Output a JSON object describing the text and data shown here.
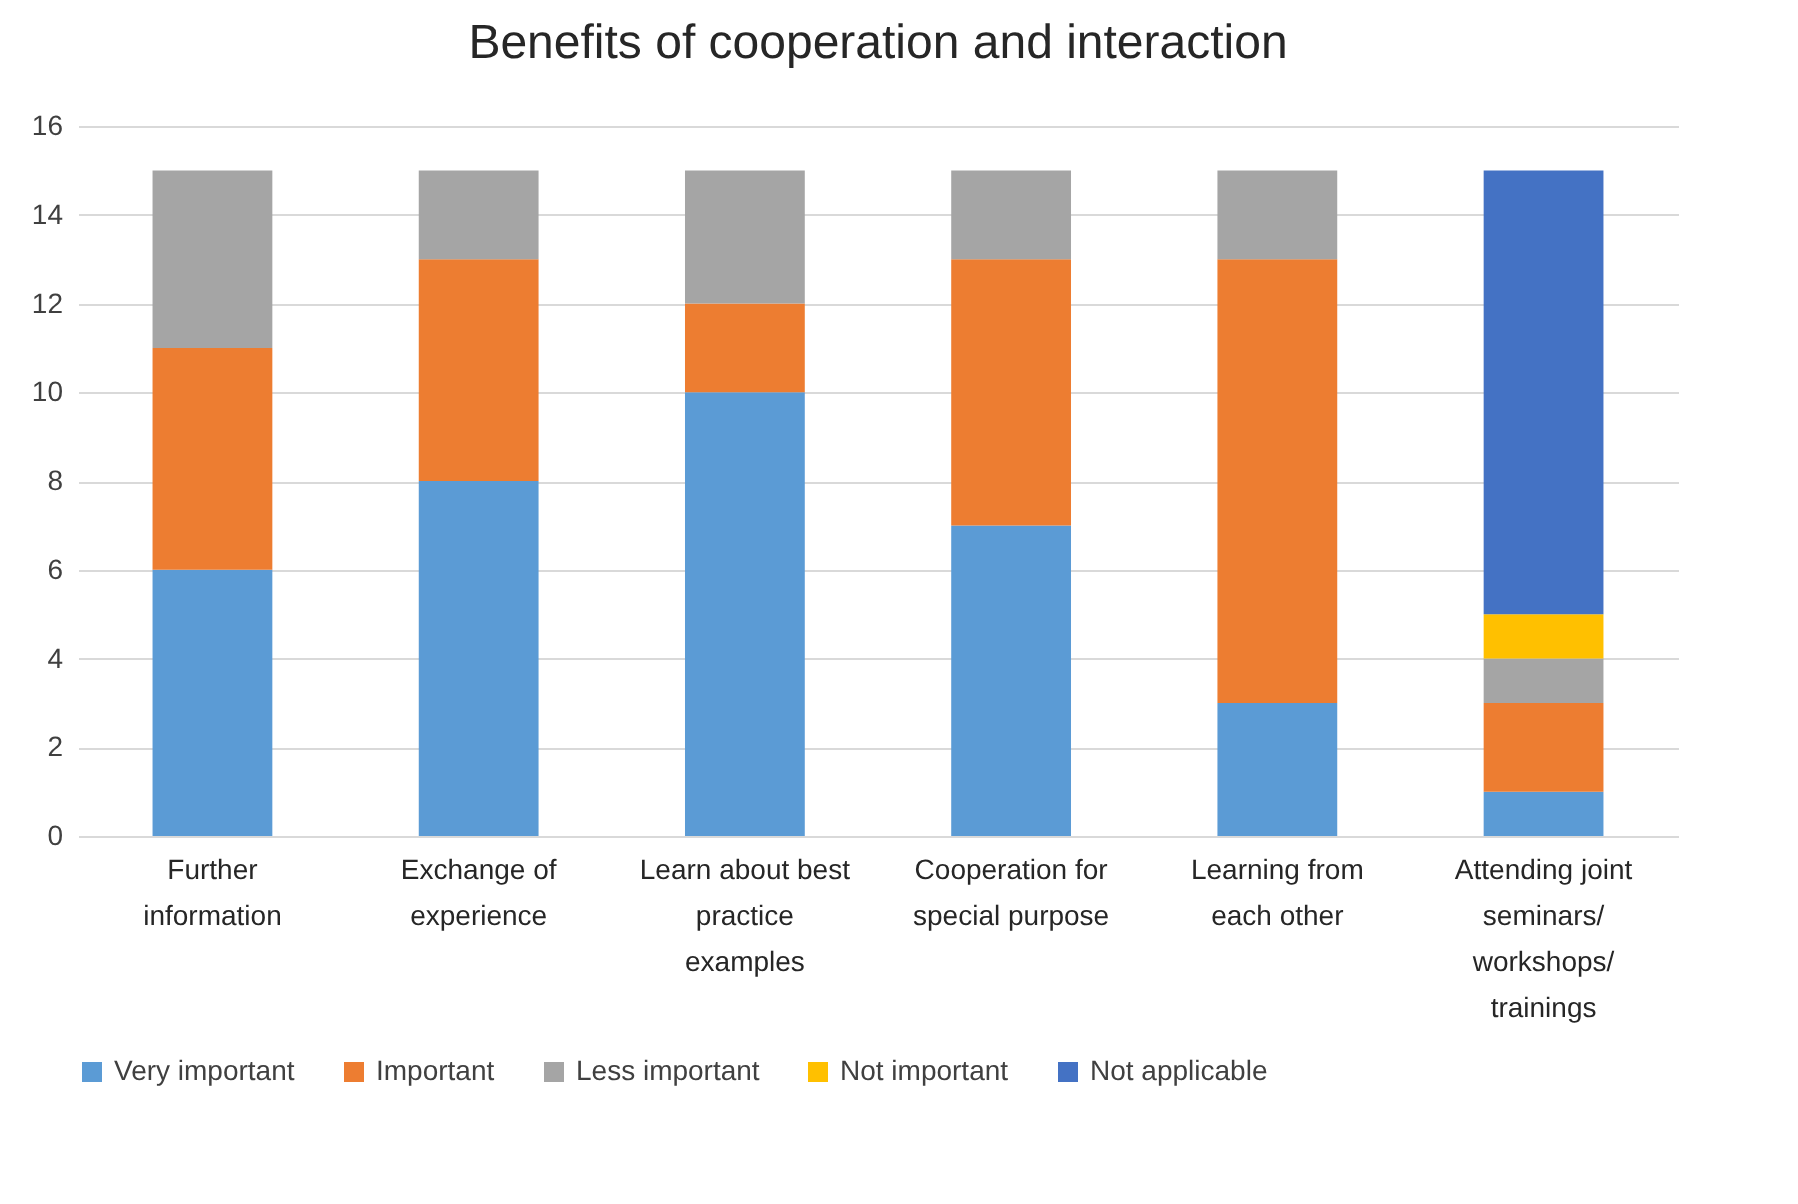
{
  "chart_data": {
    "type": "bar",
    "stacked": true,
    "title": "Benefits of cooperation and interaction",
    "categories": [
      "Further information",
      "Exchange of experience",
      "Learn about best practice examples",
      "Cooperation for special purpose",
      "Learning from each other",
      "Attending joint seminars/ workshops/ trainings"
    ],
    "series": [
      {
        "name": "Very important",
        "color": "#5b9bd5",
        "values": [
          6,
          8,
          10,
          7,
          3,
          1
        ]
      },
      {
        "name": "Important",
        "color": "#ed7d31",
        "values": [
          5,
          5,
          2,
          6,
          10,
          2
        ]
      },
      {
        "name": "Less important",
        "color": "#a5a5a5",
        "values": [
          4,
          2,
          3,
          2,
          2,
          1
        ]
      },
      {
        "name": "Not important",
        "color": "#ffc000",
        "values": [
          0,
          0,
          0,
          0,
          0,
          1
        ]
      },
      {
        "name": "Not applicable",
        "color": "#4472c4",
        "values": [
          0,
          0,
          0,
          0,
          0,
          10
        ]
      }
    ],
    "ylim": [
      0,
      16
    ],
    "yticks": [
      0,
      2,
      4,
      6,
      8,
      10,
      12,
      14,
      16
    ],
    "grid": "y",
    "legend": "bottom"
  }
}
